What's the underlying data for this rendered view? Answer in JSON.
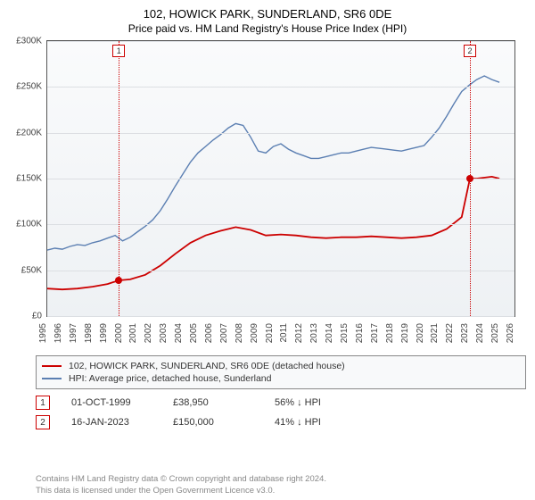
{
  "title": {
    "line1": "102, HOWICK PARK, SUNDERLAND, SR6 0DE",
    "line2": "Price paid vs. HM Land Registry's House Price Index (HPI)"
  },
  "chart": {
    "type": "line",
    "background_gradient_top": "#fafbfc",
    "background_gradient_bottom": "#eef1f4",
    "border_color": "#555555",
    "grid_color": "#dcdfe3",
    "y_axis": {
      "min": 0,
      "max": 300000,
      "tick_step": 50000,
      "tick_labels": [
        "£0",
        "£50K",
        "£100K",
        "£150K",
        "£200K",
        "£250K",
        "£300K"
      ],
      "label_fontsize": 10,
      "label_color": "#444444"
    },
    "x_axis": {
      "min": 1995,
      "max": 2026,
      "tick_step": 1,
      "tick_labels": [
        "1995",
        "1996",
        "1997",
        "1998",
        "1999",
        "2000",
        "2001",
        "2002",
        "2003",
        "2004",
        "2005",
        "2006",
        "2007",
        "2008",
        "2009",
        "2010",
        "2011",
        "2012",
        "2013",
        "2014",
        "2015",
        "2016",
        "2017",
        "2018",
        "2019",
        "2020",
        "2021",
        "2022",
        "2023",
        "2024",
        "2025",
        "2026"
      ],
      "label_fontsize": 10,
      "label_color": "#444444",
      "rotation": -90
    },
    "series": [
      {
        "id": "price_paid",
        "label": "102, HOWICK PARK, SUNDERLAND, SR6 0DE (detached house)",
        "color": "#cc0000",
        "line_width": 1.8,
        "points": [
          [
            1995.0,
            30000
          ],
          [
            1996.0,
            29000
          ],
          [
            1997.0,
            30000
          ],
          [
            1998.0,
            32000
          ],
          [
            1999.0,
            35000
          ],
          [
            1999.75,
            38950
          ],
          [
            2000.5,
            40000
          ],
          [
            2001.5,
            45000
          ],
          [
            2002.5,
            55000
          ],
          [
            2003.5,
            68000
          ],
          [
            2004.5,
            80000
          ],
          [
            2005.5,
            88000
          ],
          [
            2006.5,
            93000
          ],
          [
            2007.5,
            97000
          ],
          [
            2008.5,
            94000
          ],
          [
            2009.5,
            88000
          ],
          [
            2010.5,
            89000
          ],
          [
            2011.5,
            88000
          ],
          [
            2012.5,
            86000
          ],
          [
            2013.5,
            85000
          ],
          [
            2014.5,
            86000
          ],
          [
            2015.5,
            86000
          ],
          [
            2016.5,
            87000
          ],
          [
            2017.5,
            86000
          ],
          [
            2018.5,
            85000
          ],
          [
            2019.5,
            86000
          ],
          [
            2020.5,
            88000
          ],
          [
            2021.5,
            95000
          ],
          [
            2022.5,
            108000
          ],
          [
            2023.04,
            150000
          ],
          [
            2023.5,
            150000
          ],
          [
            2024.5,
            152000
          ],
          [
            2025.0,
            150000
          ]
        ]
      },
      {
        "id": "hpi",
        "label": "HPI: Average price, detached house, Sunderland",
        "color": "#5b7fb2",
        "line_width": 1.4,
        "points": [
          [
            1995.0,
            72000
          ],
          [
            1995.5,
            74000
          ],
          [
            1996.0,
            73000
          ],
          [
            1996.5,
            76000
          ],
          [
            1997.0,
            78000
          ],
          [
            1997.5,
            77000
          ],
          [
            1998.0,
            80000
          ],
          [
            1998.5,
            82000
          ],
          [
            1999.0,
            85000
          ],
          [
            1999.5,
            88000
          ],
          [
            2000.0,
            82000
          ],
          [
            2000.5,
            86000
          ],
          [
            2001.0,
            92000
          ],
          [
            2001.5,
            98000
          ],
          [
            2002.0,
            105000
          ],
          [
            2002.5,
            115000
          ],
          [
            2003.0,
            128000
          ],
          [
            2003.5,
            142000
          ],
          [
            2004.0,
            155000
          ],
          [
            2004.5,
            168000
          ],
          [
            2005.0,
            178000
          ],
          [
            2005.5,
            185000
          ],
          [
            2006.0,
            192000
          ],
          [
            2006.5,
            198000
          ],
          [
            2007.0,
            205000
          ],
          [
            2007.5,
            210000
          ],
          [
            2008.0,
            208000
          ],
          [
            2008.5,
            195000
          ],
          [
            2009.0,
            180000
          ],
          [
            2009.5,
            178000
          ],
          [
            2010.0,
            185000
          ],
          [
            2010.5,
            188000
          ],
          [
            2011.0,
            182000
          ],
          [
            2011.5,
            178000
          ],
          [
            2012.0,
            175000
          ],
          [
            2012.5,
            172000
          ],
          [
            2013.0,
            172000
          ],
          [
            2013.5,
            174000
          ],
          [
            2014.0,
            176000
          ],
          [
            2014.5,
            178000
          ],
          [
            2015.0,
            178000
          ],
          [
            2015.5,
            180000
          ],
          [
            2016.0,
            182000
          ],
          [
            2016.5,
            184000
          ],
          [
            2017.0,
            183000
          ],
          [
            2017.5,
            182000
          ],
          [
            2018.0,
            181000
          ],
          [
            2018.5,
            180000
          ],
          [
            2019.0,
            182000
          ],
          [
            2019.5,
            184000
          ],
          [
            2020.0,
            186000
          ],
          [
            2020.5,
            195000
          ],
          [
            2021.0,
            205000
          ],
          [
            2021.5,
            218000
          ],
          [
            2022.0,
            232000
          ],
          [
            2022.5,
            245000
          ],
          [
            2023.0,
            252000
          ],
          [
            2023.5,
            258000
          ],
          [
            2024.0,
            262000
          ],
          [
            2024.5,
            258000
          ],
          [
            2025.0,
            255000
          ]
        ]
      }
    ],
    "events": [
      {
        "n": "1",
        "year": 1999.75,
        "color": "#cc0000"
      },
      {
        "n": "2",
        "year": 2023.04,
        "color": "#cc0000"
      }
    ],
    "sale_markers": [
      {
        "year": 1999.75,
        "value": 38950,
        "color": "#cc0000"
      },
      {
        "year": 2023.04,
        "value": 150000,
        "color": "#cc0000"
      }
    ]
  },
  "legend": {
    "border_color": "#888888",
    "background": "#f8f9fa",
    "fontsize": 10.5
  },
  "event_table": {
    "rows": [
      {
        "n": "1",
        "date": "01-OCT-1999",
        "price": "£38,950",
        "diff": "56% ↓ HPI",
        "badge_color": "#cc0000"
      },
      {
        "n": "2",
        "date": "16-JAN-2023",
        "price": "£150,000",
        "diff": "41% ↓ HPI",
        "badge_color": "#cc0000"
      }
    ]
  },
  "footer": {
    "line1": "Contains HM Land Registry data © Crown copyright and database right 2024.",
    "line2": "This data is licensed under the Open Government Licence v3.0."
  }
}
